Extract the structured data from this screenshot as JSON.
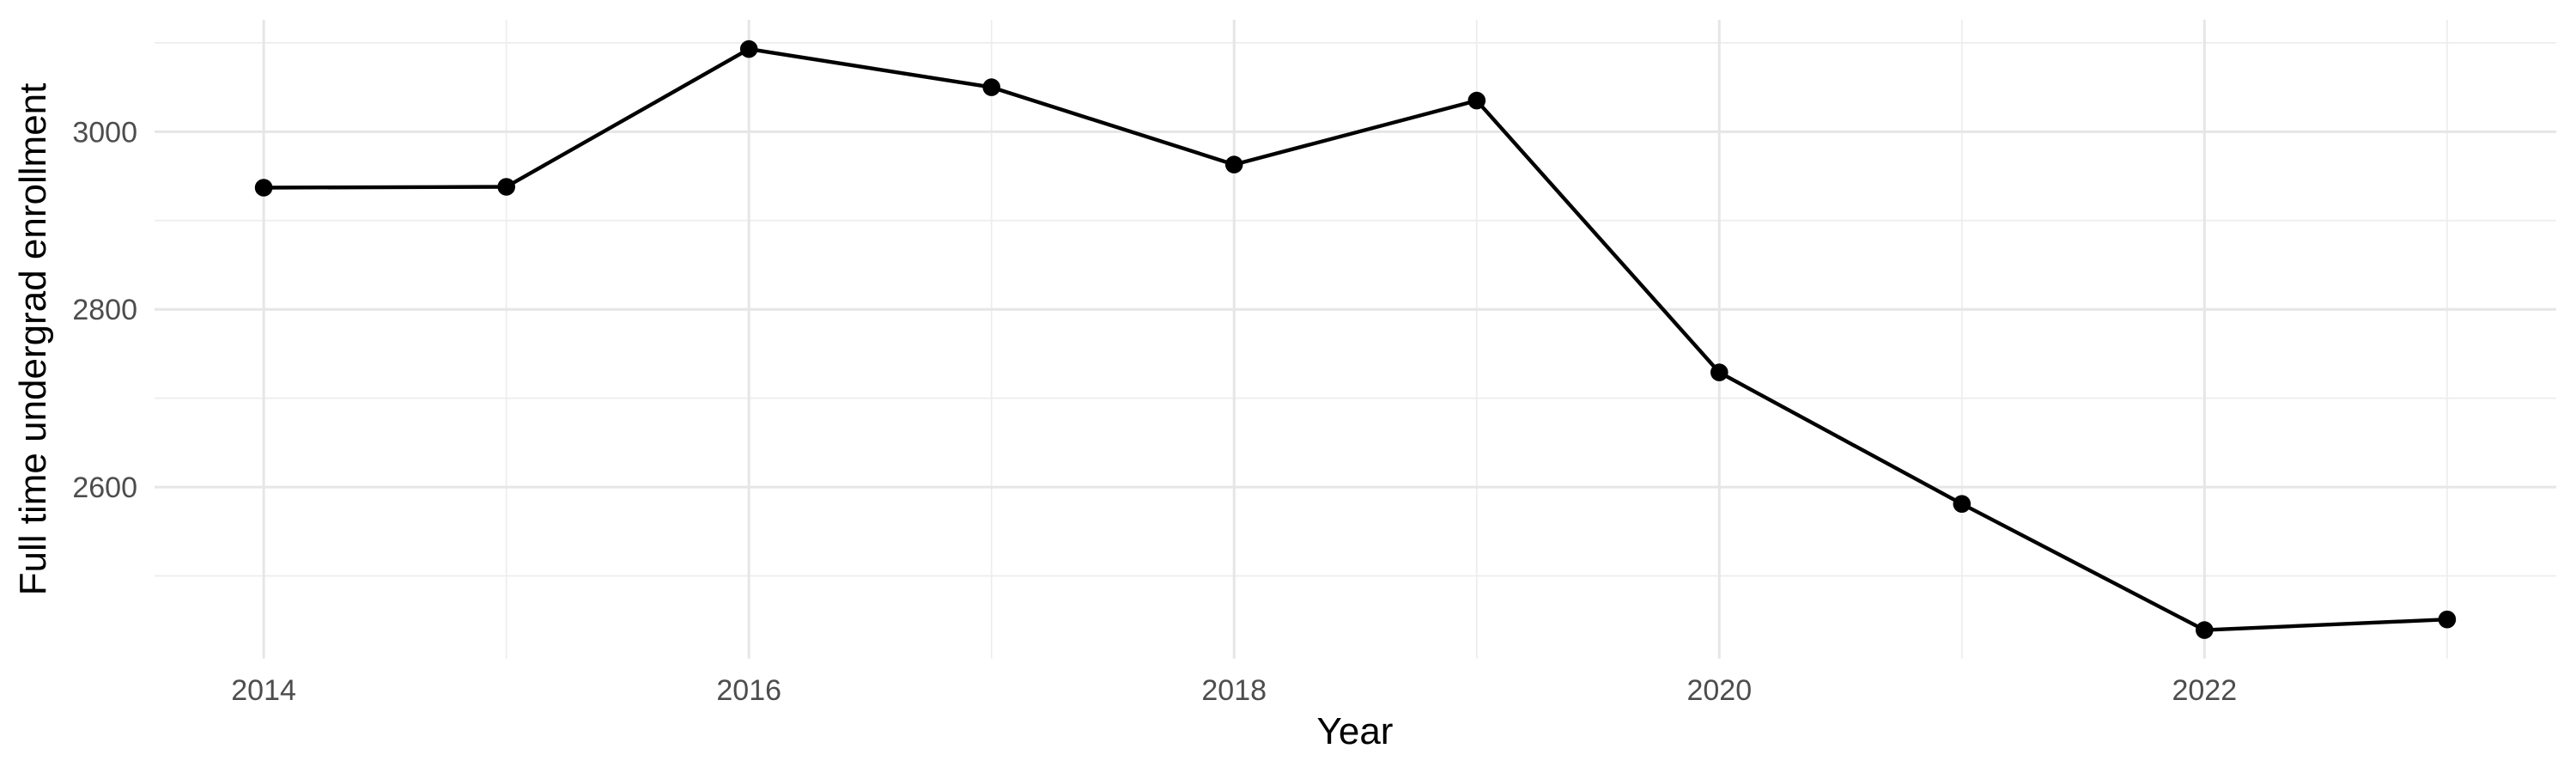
{
  "chart_data": {
    "type": "line",
    "title": "",
    "xlabel": "Year",
    "ylabel": "Full time undergrad enrollment",
    "x": [
      2014,
      2015,
      2016,
      2017,
      2018,
      2019,
      2020,
      2021,
      2022,
      2023
    ],
    "values": [
      2937,
      2938,
      3093,
      3050,
      2963,
      3035,
      2729,
      2581,
      2439,
      2451
    ],
    "series_name": "Full time undergrad enrollment by year",
    "x_ticks_major": [
      2014,
      2016,
      2018,
      2020,
      2022
    ],
    "x_ticks_minor": [
      2015,
      2017,
      2019,
      2021,
      2023
    ],
    "y_ticks_major": [
      2600,
      2800,
      3000
    ],
    "y_ticks_minor": [
      2500,
      2700,
      2900,
      3100
    ],
    "xlim": [
      2013.55,
      2023.45
    ],
    "ylim": [
      2407,
      3126
    ],
    "grid": "on",
    "legend": "none",
    "marker": "filled-circle"
  },
  "style": {
    "background_color": "#FFFFFF",
    "line_color": "#000000",
    "point_color": "#000000",
    "grid_major_color": "#E6E6E6",
    "grid_minor_color": "#EDEDED",
    "tick_label_color": "#4D4D4D",
    "axis_title_color": "#000000"
  }
}
